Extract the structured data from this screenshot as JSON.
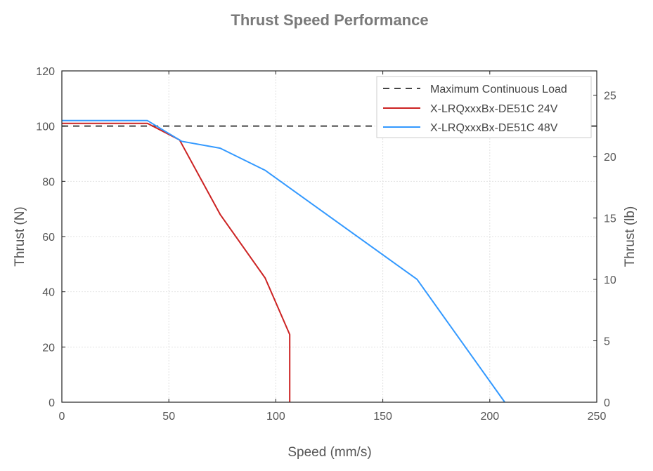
{
  "chart_data": {
    "type": "line",
    "title": "Thrust Speed Performance",
    "xlabel": "Speed (mm/s)",
    "ylabel": "Thrust (N)",
    "y2label": "Thrust (lb)",
    "xlim": [
      0,
      250
    ],
    "ylim": [
      0,
      120
    ],
    "y2lim": [
      0,
      26.98
    ],
    "x_ticks": [
      0,
      50,
      100,
      150,
      200,
      250
    ],
    "y_ticks": [
      0,
      20,
      40,
      60,
      80,
      100,
      120
    ],
    "y2_ticks": [
      0,
      5,
      10,
      15,
      20,
      25
    ],
    "grid": true,
    "legend_position": "top-right",
    "series": [
      {
        "name": "Maximum Continuous Load",
        "color": "#444444",
        "style": "dashed",
        "x": [
          0,
          250
        ],
        "y": [
          100,
          100
        ]
      },
      {
        "name": "X-LRQxxxBx-DE51C 24V",
        "color": "#cc2222",
        "style": "solid",
        "x": [
          0,
          40,
          55,
          74,
          95,
          106.5,
          106.5
        ],
        "y": [
          101,
          101,
          95,
          68,
          45,
          24.5,
          0
        ]
      },
      {
        "name": "X-LRQxxxBx-DE51C 48V",
        "color": "#3399ff",
        "style": "solid",
        "x": [
          0,
          40,
          56,
          74,
          95,
          166,
          207
        ],
        "y": [
          102,
          102,
          94.5,
          92,
          84,
          44.5,
          0
        ]
      }
    ]
  }
}
